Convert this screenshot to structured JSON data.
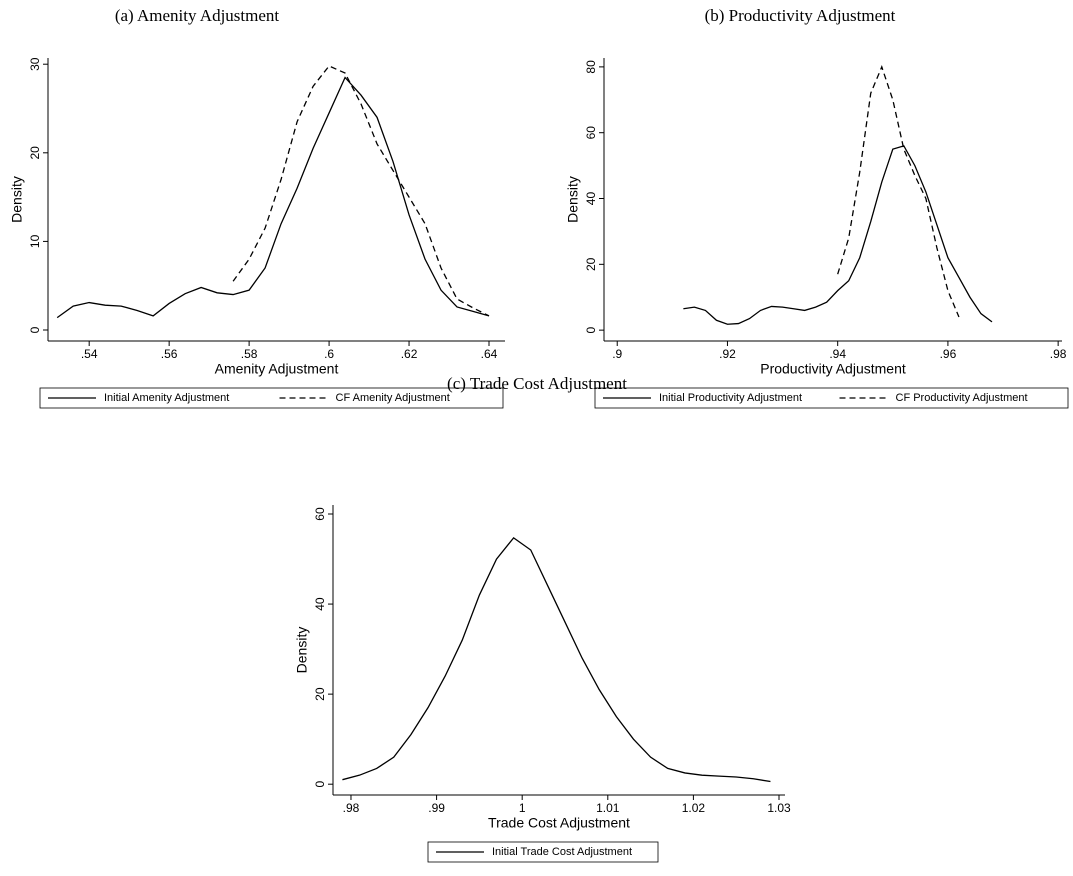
{
  "chart_data": [
    {
      "type": "line",
      "title": "(a) Amenity Adjustment",
      "xlabel": "Amenity Adjustment",
      "ylabel": "Density",
      "x": [
        0.532,
        0.536,
        0.54,
        0.544,
        0.548,
        0.552,
        0.556,
        0.56,
        0.564,
        0.568,
        0.572,
        0.576,
        0.58,
        0.584,
        0.588,
        0.592,
        0.596,
        0.6,
        0.604,
        0.608,
        0.612,
        0.616,
        0.62,
        0.624,
        0.628,
        0.632,
        0.636,
        0.64
      ],
      "series": [
        {
          "name": "Initial Amenity Adjustment",
          "color": "#000000",
          "line_style": "solid",
          "values": [
            1.4,
            2.7,
            3.1,
            2.8,
            2.7,
            2.2,
            1.6,
            3.0,
            4.1,
            4.8,
            4.2,
            4.0,
            4.5,
            7.0,
            12.0,
            16.0,
            20.5,
            24.5,
            28.5,
            26.5,
            24.0,
            19.0,
            13.0,
            8.0,
            4.5,
            2.6,
            2.1,
            1.6
          ]
        },
        {
          "name": "CF Amenity Adjustment",
          "color": "#000000",
          "line_style": "dashed",
          "values": [
            null,
            null,
            null,
            null,
            null,
            null,
            null,
            null,
            null,
            null,
            null,
            5.5,
            8.0,
            11.5,
            17.0,
            23.5,
            27.5,
            29.8,
            29.0,
            25.5,
            21.0,
            18.0,
            15.0,
            12.0,
            7.0,
            3.5,
            2.5,
            1.6
          ]
        }
      ],
      "xlim": [
        0.5297,
        0.644
      ],
      "ylim": [
        -1.24,
        30.7
      ],
      "xticks": [
        {
          "value": 0.54,
          "label": ".54"
        },
        {
          "value": 0.56,
          "label": ".56"
        },
        {
          "value": 0.58,
          "label": ".58"
        },
        {
          "value": 0.6,
          "label": ".6"
        },
        {
          "value": 0.62,
          "label": ".62"
        },
        {
          "value": 0.64,
          "label": ".64"
        }
      ],
      "yticks": [
        0,
        10,
        20,
        30
      ],
      "legend": "bottom"
    },
    {
      "type": "line",
      "title": "(b) Productivity Adjustment",
      "xlabel": "Productivity Adjustment",
      "ylabel": "Density",
      "x": [
        0.912,
        0.914,
        0.916,
        0.918,
        0.92,
        0.922,
        0.924,
        0.926,
        0.928,
        0.93,
        0.932,
        0.934,
        0.936,
        0.938,
        0.94,
        0.942,
        0.944,
        0.946,
        0.948,
        0.95,
        0.952,
        0.954,
        0.956,
        0.958,
        0.96,
        0.962,
        0.964,
        0.966,
        0.968
      ],
      "series": [
        {
          "name": "Initial Productivity Adjustment",
          "color": "#000000",
          "line_style": "solid",
          "values": [
            6.5,
            7,
            6,
            3,
            1.8,
            2,
            3.5,
            6,
            7.2,
            7,
            6.5,
            6,
            7,
            8.5,
            12,
            15,
            22,
            33,
            45,
            55,
            56,
            50,
            42,
            32,
            22,
            16,
            10,
            5,
            2.5
          ]
        },
        {
          "name": "CF Productivity Adjustment",
          "color": "#000000",
          "line_style": "dashed",
          "values": [
            null,
            null,
            null,
            null,
            null,
            null,
            null,
            null,
            null,
            null,
            null,
            null,
            null,
            null,
            17,
            28,
            48,
            72,
            80,
            70,
            55,
            47,
            40,
            25,
            12,
            4,
            null,
            null,
            null
          ]
        }
      ],
      "xlim": [
        0.8976,
        0.9807
      ],
      "ylim": [
        -3.3,
        82.7
      ],
      "xticks": [
        {
          "value": 0.9,
          "label": ".9"
        },
        {
          "value": 0.92,
          "label": ".92"
        },
        {
          "value": 0.94,
          "label": ".94"
        },
        {
          "value": 0.96,
          "label": ".96"
        },
        {
          "value": 0.98,
          "label": ".98"
        }
      ],
      "yticks": [
        0,
        20,
        40,
        60,
        80
      ],
      "legend": "bottom"
    },
    {
      "type": "line",
      "title": "(c) Trade Cost Adjustment",
      "xlabel": "Trade Cost Adjustment",
      "ylabel": "Density",
      "x": [
        0.979,
        0.981,
        0.983,
        0.985,
        0.987,
        0.989,
        0.991,
        0.993,
        0.995,
        0.997,
        0.999,
        1.001,
        1.003,
        1.005,
        1.007,
        1.009,
        1.011,
        1.013,
        1.015,
        1.017,
        1.019,
        1.021,
        1.023,
        1.025,
        1.027,
        1.029
      ],
      "series": [
        {
          "name": "Initial Trade Cost Adjustment",
          "color": "#000000",
          "line_style": "solid",
          "values": [
            1,
            2,
            3.5,
            6,
            11,
            17,
            24,
            32,
            42,
            50,
            54.7,
            52,
            44,
            36,
            28,
            21,
            15,
            10,
            6,
            3.5,
            2.5,
            2,
            1.8,
            1.6,
            1.2,
            0.6
          ]
        }
      ],
      "xlim": [
        0.9779,
        1.0307
      ],
      "ylim": [
        -2.4,
        62
      ],
      "xticks": [
        {
          "value": 0.98,
          "label": ".98"
        },
        {
          "value": 0.99,
          "label": ".99"
        },
        1,
        1.01,
        1.02,
        1.03
      ],
      "yticks": [
        0,
        20,
        40,
        60
      ],
      "legend": "bottom"
    }
  ]
}
